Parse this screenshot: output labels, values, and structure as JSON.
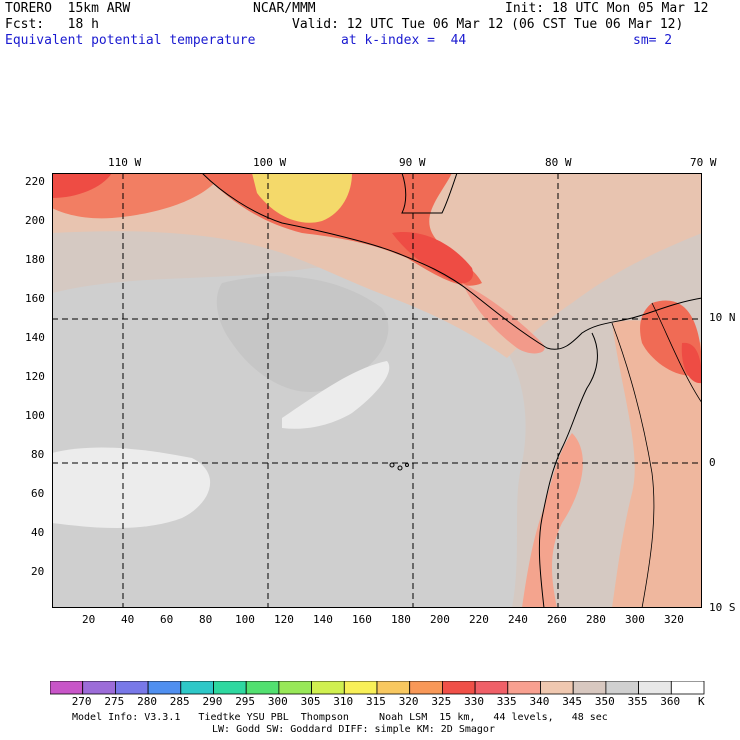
{
  "header": {
    "left1": "TORERO  15km ARW",
    "center1": "NCAR/MMM",
    "right1": "Init: 18 UTC Mon 05 Mar 12",
    "left2": "Fcst:   18 h",
    "right2": "Valid: 12 UTC Tue 06 Mar 12 (06 CST Tue 06 Mar 12)",
    "field": "Equivalent potential temperature",
    "level": "at k-index =  44",
    "smooth": "sm= 2"
  },
  "axes": {
    "lon_labels": [
      "110 W",
      "100 W",
      "90 W",
      "80 W",
      "70 W"
    ],
    "lat_labels": [
      "10 N",
      "0",
      "10 S"
    ],
    "y_ticks": [
      "220",
      "200",
      "180",
      "160",
      "140",
      "120",
      "100",
      "80",
      "60",
      "40",
      "20"
    ],
    "x_ticks": [
      "20",
      "40",
      "60",
      "80",
      "100",
      "120",
      "140",
      "160",
      "180",
      "200",
      "220",
      "240",
      "260",
      "280",
      "300",
      "320"
    ]
  },
  "colorbar": {
    "labels": [
      "270",
      "275",
      "280",
      "285",
      "290",
      "295",
      "300",
      "305",
      "310",
      "315",
      "320",
      "325",
      "330",
      "335",
      "340",
      "345",
      "350",
      "355",
      "360"
    ],
    "unit": "K",
    "colors": [
      "#c855c8",
      "#9c6cd8",
      "#7878e8",
      "#4f8ff0",
      "#2ec8c8",
      "#2ed8a0",
      "#52e070",
      "#98e858",
      "#d0f050",
      "#f8f058",
      "#f8c860",
      "#f89858",
      "#f05048",
      "#f06068",
      "#f8a090",
      "#f0c8b0",
      "#d8c8c0",
      "#d0d0d0",
      "#e8e8e8",
      "#ffffff"
    ]
  },
  "footer": {
    "line1": "Model Info: V3.3.1   Tiedtke YSU PBL  Thompson     Noah LSM  15 km,   44 levels,   48 sec",
    "line2": "LW: Godd SW: Goddard DIFF: simple KM: 2D Smagor"
  }
}
